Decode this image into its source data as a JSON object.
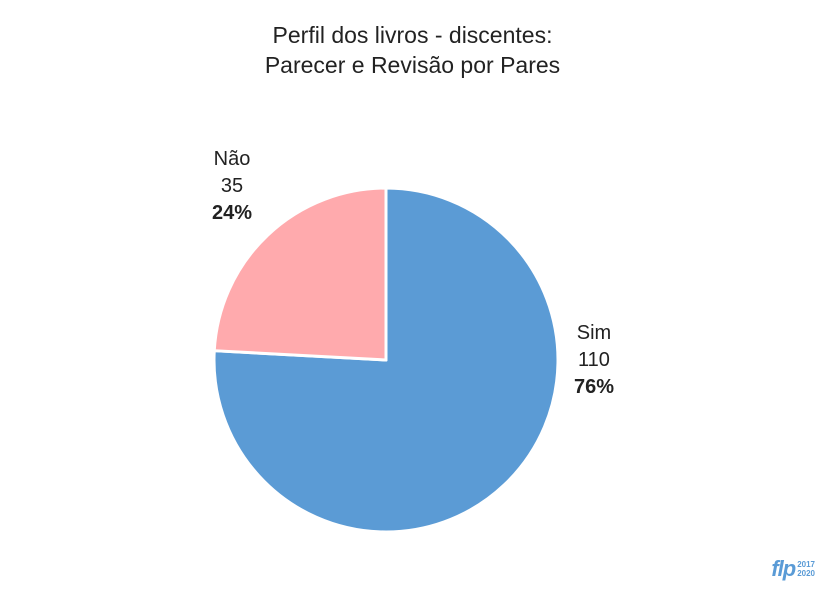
{
  "chart_data": {
    "type": "pie",
    "title_lines": [
      "Perfil dos livros - discentes:",
      "Parecer e Revisão por Pares"
    ],
    "slices": [
      {
        "label": "Sim",
        "value": 110,
        "percent": "76%",
        "color": "#5b9bd5"
      },
      {
        "label": "Não",
        "value": 35,
        "percent": "24%",
        "color": "#ffaaad"
      }
    ],
    "start_angle_deg": 0,
    "direction": "clockwise"
  },
  "logo": {
    "text": "flp",
    "years": [
      "2017",
      "2020"
    ],
    "color": "#5a9bd6"
  }
}
